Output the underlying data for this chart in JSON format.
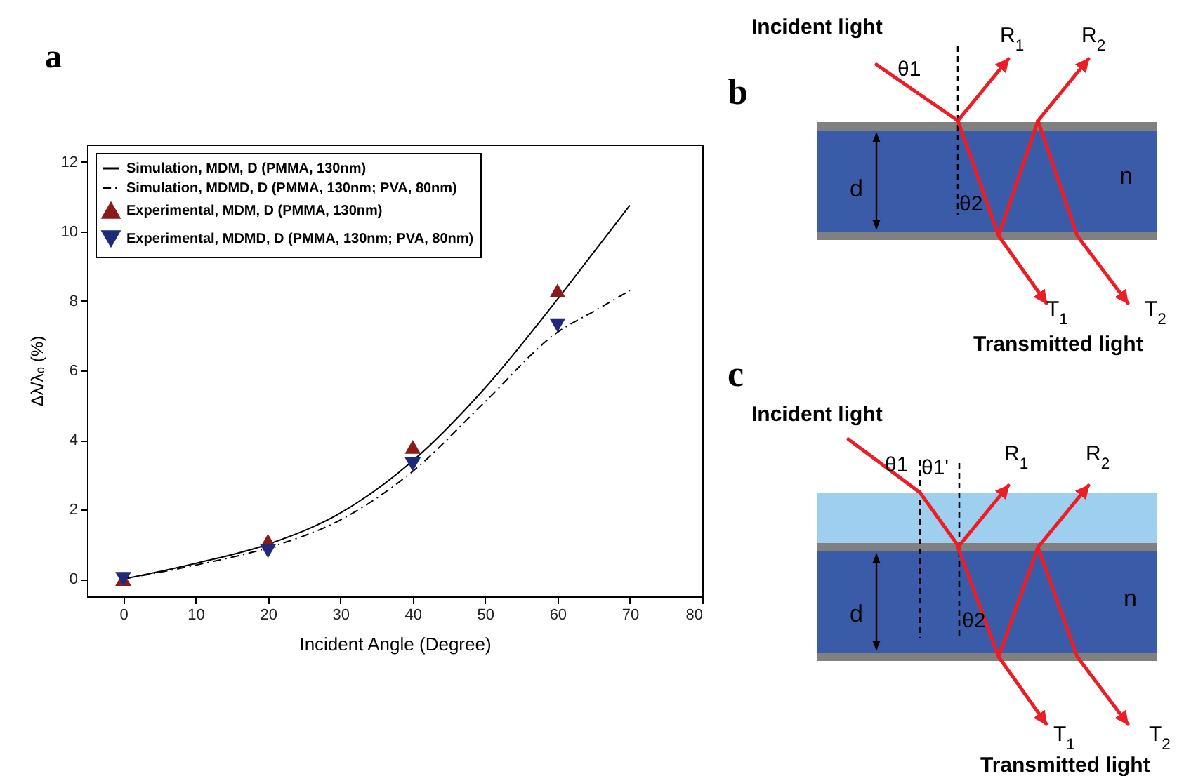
{
  "chart_data": {
    "type": "line",
    "title": "a",
    "xlabel": "Incident Angle (Degree)",
    "ylabel": "Δλ/λ₀ (%)",
    "xlim": [
      -5,
      80
    ],
    "xticks": [
      0,
      10,
      20,
      30,
      40,
      50,
      60,
      70,
      80
    ],
    "ylim": [
      -0.5,
      12.5
    ],
    "yticks": [
      0,
      2,
      4,
      6,
      8,
      10,
      12
    ],
    "grid": false,
    "legend": "top left",
    "series": [
      {
        "name": "Simulation, MDM, D (PMMA, 130nm)",
        "type": "line",
        "color": "#000000",
        "line_style": "solid",
        "marker": "none",
        "x": [
          0,
          10,
          20,
          30,
          40,
          50,
          60,
          65,
          70
        ],
        "values": [
          0,
          0.45,
          1.0,
          1.9,
          3.4,
          5.5,
          8.05,
          9.4,
          10.75
        ]
      },
      {
        "name": "Simulation, MDMD, D (PMMA, 130nm; PVA, 80nm)",
        "type": "line",
        "color": "#000000",
        "line_style": "dashed",
        "marker": "none",
        "x": [
          0,
          10,
          20,
          30,
          40,
          50,
          60,
          65,
          70
        ],
        "values": [
          0,
          0.4,
          0.9,
          1.7,
          3.1,
          5.1,
          7.1,
          7.7,
          8.3
        ]
      },
      {
        "name": "Experimental, MDM, D (PMMA, 130nm)",
        "type": "scatter",
        "color": "#8b1a1a",
        "marker": "triangle",
        "x": [
          0,
          20,
          40,
          60
        ],
        "values": [
          0,
          1.1,
          3.8,
          8.3
        ]
      },
      {
        "name": "Experimental, MDMD, D (PMMA, 130nm; PVA, 80nm)",
        "type": "scatter",
        "color": "#1f2a7a",
        "marker": "triangle-down",
        "x": [
          0,
          20,
          40,
          60
        ],
        "values": [
          0,
          0.8,
          3.3,
          7.3
        ]
      }
    ],
    "annotations": [
      "b",
      "Incident light",
      "θ1",
      "R$_{1}$",
      "R$_{2}$",
      "d",
      "θ2",
      "n",
      "T$_{1}$",
      "T$_{2}$",
      "Transmitted light",
      "c",
      "Incident light",
      "θ1",
      "θ1'",
      "R$_{1}$",
      "R$_{2}$",
      "d",
      "θ2",
      "n",
      "T$_{1}$",
      "T$_{2}$",
      "Transmitted light"
    ]
  }
}
